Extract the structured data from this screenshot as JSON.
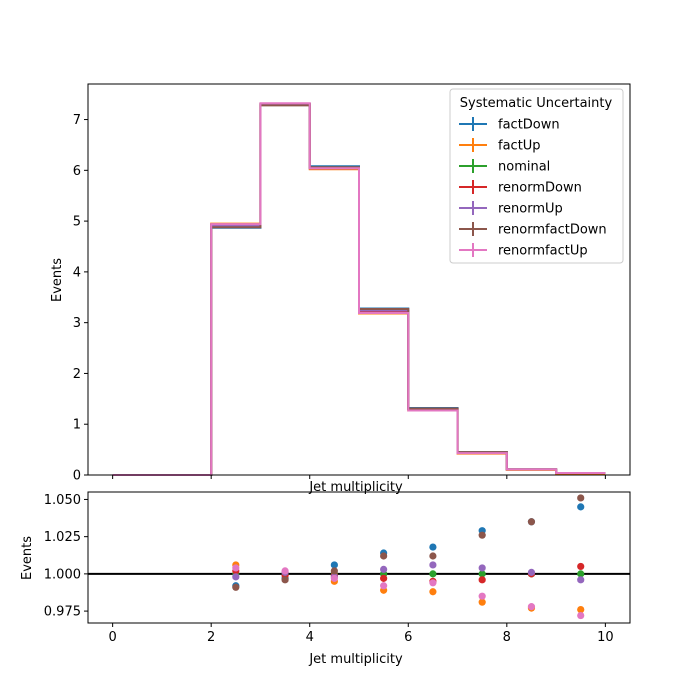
{
  "chart_data": [
    {
      "type": "step",
      "xlabel": "Jet multiplicity",
      "ylabel": "Events",
      "xlim": [
        -0.5,
        10.5
      ],
      "ylim": [
        0,
        7.7
      ],
      "xticks": [
        0,
        2,
        4,
        6,
        8,
        10
      ],
      "xtick_labels_visible": false,
      "yticks": [
        0,
        1,
        2,
        3,
        4,
        5,
        6,
        7
      ],
      "ytick_labels": [
        "0",
        "1",
        "2",
        "3",
        "4",
        "5",
        "6",
        "7"
      ],
      "bin_edges": [
        0,
        1,
        2,
        3,
        4,
        5,
        6,
        7,
        8,
        9,
        10
      ],
      "legend": {
        "title": "Systematic Uncertainty",
        "placement": "top-right"
      },
      "series": [
        {
          "name": "factDown",
          "color": "#1f77b4",
          "values": [
            0,
            0,
            4.87,
            7.3,
            6.08,
            3.28,
            1.32,
            0.45,
            0.11,
            0.04
          ]
        },
        {
          "name": "factUp",
          "color": "#ff7f0e",
          "values": [
            0,
            0,
            4.95,
            7.31,
            6.02,
            3.18,
            1.27,
            0.42,
            0.1,
            0.03
          ]
        },
        {
          "name": "nominal",
          "color": "#2ca02c",
          "values": [
            0,
            0,
            4.92,
            7.3,
            6.05,
            3.23,
            1.3,
            0.44,
            0.11,
            0.04
          ]
        },
        {
          "name": "renormDown",
          "color": "#d62728",
          "values": [
            0,
            0,
            4.93,
            7.3,
            6.04,
            3.22,
            1.3,
            0.44,
            0.11,
            0.04
          ]
        },
        {
          "name": "renormUp",
          "color": "#9467bd",
          "values": [
            0,
            0,
            4.91,
            7.31,
            6.04,
            3.24,
            1.31,
            0.44,
            0.11,
            0.04
          ]
        },
        {
          "name": "renormfactDown",
          "color": "#8c564b",
          "values": [
            0,
            0,
            4.88,
            7.28,
            6.06,
            3.27,
            1.31,
            0.45,
            0.11,
            0.04
          ]
        },
        {
          "name": "renormfactUp",
          "color": "#e377c2",
          "values": [
            0,
            0,
            4.94,
            7.32,
            6.04,
            3.19,
            1.27,
            0.43,
            0.11,
            0.04
          ]
        }
      ]
    },
    {
      "type": "scatter",
      "xlabel": "Jet multiplicity",
      "ylabel": "Events",
      "xlim": [
        -0.5,
        10.5
      ],
      "ylim": [
        0.967,
        1.055
      ],
      "xticks": [
        0,
        2,
        4,
        6,
        8,
        10
      ],
      "xtick_labels": [
        "0",
        "2",
        "4",
        "6",
        "8",
        "10"
      ],
      "yticks": [
        0.975,
        1.0,
        1.025,
        1.05
      ],
      "ytick_labels": [
        "0.975",
        "1.000",
        "1.025",
        "1.050"
      ],
      "reference_line": 1.0,
      "x": [
        2.5,
        3.5,
        4.5,
        5.5,
        6.5,
        7.5,
        8.5,
        9.5
      ],
      "series": [
        {
          "name": "factDown",
          "color": "#1f77b4",
          "values": [
            0.992,
            0.997,
            1.006,
            1.014,
            1.018,
            1.029,
            1.035,
            1.045
          ]
        },
        {
          "name": "factUp",
          "color": "#ff7f0e",
          "values": [
            1.006,
            1.001,
            0.995,
            0.989,
            0.988,
            0.981,
            0.977,
            0.976
          ]
        },
        {
          "name": "nominal",
          "color": "#2ca02c",
          "values": [
            1.0,
            1.0,
            1.0,
            1.0,
            1.0,
            1.0,
            1.0,
            1.0
          ]
        },
        {
          "name": "renormDown",
          "color": "#d62728",
          "values": [
            1.002,
            0.999,
            0.999,
            0.997,
            0.995,
            0.996,
            1.0,
            1.005
          ]
        },
        {
          "name": "renormUp",
          "color": "#9467bd",
          "values": [
            0.998,
            1.001,
            0.998,
            1.003,
            1.006,
            1.004,
            1.001,
            0.996
          ]
        },
        {
          "name": "renormfactDown",
          "color": "#8c564b",
          "values": [
            0.991,
            0.996,
            1.002,
            1.012,
            1.012,
            1.026,
            1.035,
            1.051
          ]
        },
        {
          "name": "renormfactUp",
          "color": "#e377c2",
          "values": [
            1.004,
            1.002,
            0.997,
            0.992,
            0.994,
            0.985,
            0.978,
            0.972
          ]
        }
      ]
    }
  ]
}
